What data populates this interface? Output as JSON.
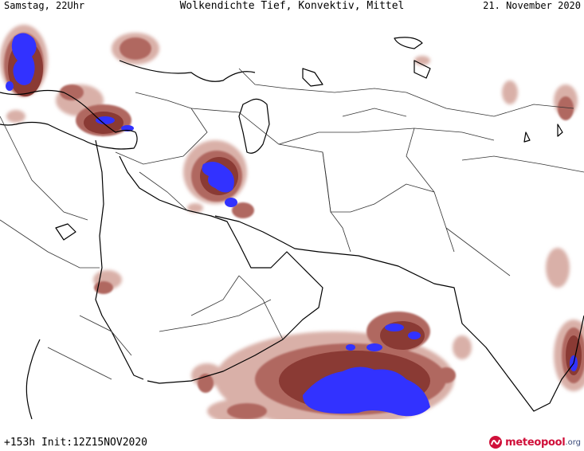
{
  "header": {
    "left": "Samstag, 22Uhr",
    "center": "Wolkendichte  Tief, Konvektiv, Mittel",
    "right": "21. November 2020"
  },
  "footer": {
    "left": "+153h Init:12Z15NOV2020",
    "logo_main": "meteopool",
    "logo_tld": ".org"
  },
  "colors": {
    "cloud_light": "#d9b0a8",
    "cloud_medium": "#b06860",
    "cloud_dark": "#8a3a34",
    "cloud_dense": "#3232ff",
    "coastline": "#000000",
    "border": "#333333"
  },
  "logo_icon": "meteopool-swirl-icon"
}
